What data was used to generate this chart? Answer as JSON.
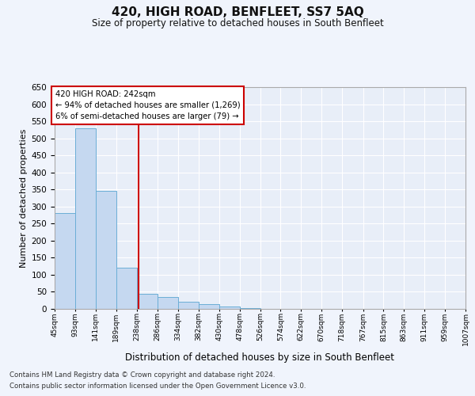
{
  "title": "420, HIGH ROAD, BENFLEET, SS7 5AQ",
  "subtitle": "Size of property relative to detached houses in South Benfleet",
  "xlabel": "Distribution of detached houses by size in South Benfleet",
  "ylabel": "Number of detached properties",
  "footnote1": "Contains HM Land Registry data © Crown copyright and database right 2024.",
  "footnote2": "Contains public sector information licensed under the Open Government Licence v3.0.",
  "annotation_line1": "420 HIGH ROAD: 242sqm",
  "annotation_line2": "← 94% of detached houses are smaller (1,269)",
  "annotation_line3": "6% of semi-detached houses are larger (79) →",
  "bin_edges": [
    45,
    93,
    141,
    189,
    238,
    286,
    334,
    382,
    430,
    478,
    526,
    574,
    622,
    670,
    718,
    767,
    815,
    863,
    911,
    959,
    1007
  ],
  "bar_heights": [
    280,
    530,
    345,
    120,
    45,
    35,
    20,
    15,
    8,
    3,
    1,
    0,
    0,
    1,
    0,
    0,
    0,
    0,
    0,
    1
  ],
  "bar_color": "#c5d8f0",
  "bar_edge_color": "#6baed6",
  "vline_x": 242,
  "vline_color": "#cc0000",
  "annotation_box_color": "#cc0000",
  "ylim": [
    0,
    650
  ],
  "yticks": [
    0,
    50,
    100,
    150,
    200,
    250,
    300,
    350,
    400,
    450,
    500,
    550,
    600,
    650
  ],
  "bg_color": "#e8eef8",
  "fig_bg_color": "#f0f4fc",
  "grid_color": "#ffffff"
}
